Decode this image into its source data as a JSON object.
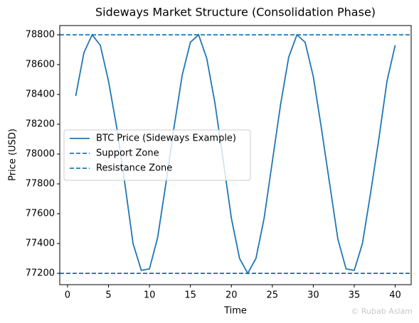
{
  "chart_data": {
    "type": "line",
    "title": "Sideways Market Structure (Consolidation Phase)",
    "x_label": "Time",
    "y_label": "Price (USD)",
    "x": [
      1,
      2,
      3,
      4,
      5,
      6,
      7,
      8,
      9,
      10,
      11,
      12,
      13,
      14,
      15,
      16,
      17,
      18,
      19,
      20,
      21,
      22,
      23,
      24,
      25,
      26,
      27,
      28,
      29,
      30,
      31,
      32,
      33,
      34,
      35,
      36,
      37,
      38,
      39,
      40
    ],
    "series": [
      {
        "name": "BTC Price (Sideways Example)",
        "color": "#1f77b4",
        "values": [
          78390,
          78680,
          78800,
          78730,
          78490,
          78180,
          77800,
          77400,
          77220,
          77230,
          77440,
          77800,
          78180,
          78530,
          78750,
          78800,
          78640,
          78340,
          77960,
          77570,
          77300,
          77200,
          77300,
          77570,
          77950,
          78330,
          78650,
          78800,
          78750,
          78520,
          78170,
          77800,
          77430,
          77230,
          77220,
          77400,
          77740,
          78100,
          78490,
          78730
        ]
      },
      {
        "name": "Support Zone",
        "color": "#1f77b4",
        "hline": 77200,
        "dashed": true
      },
      {
        "name": "Resistance Zone",
        "color": "#1f77b4",
        "hline": 78800,
        "dashed": true
      }
    ],
    "xlim": [
      -0.95,
      41.95
    ],
    "xticks": [
      0,
      5,
      10,
      15,
      20,
      25,
      30,
      35,
      40
    ],
    "ylim": [
      77124,
      78862
    ],
    "yticks": [
      77200,
      77400,
      77600,
      77800,
      78000,
      78200,
      78400,
      78600,
      78800
    ],
    "legend": "center left",
    "grid": false,
    "watermark": "© Rubab Aslam"
  }
}
